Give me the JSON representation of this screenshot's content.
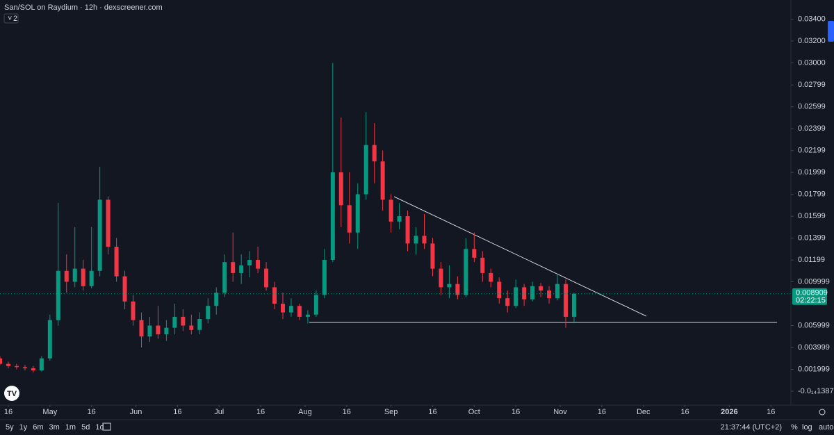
{
  "chart_data": {
    "type": "candlestick",
    "title": "San/SOL on Raydium · 12h · dexscreener.com",
    "indicator_count": "2",
    "x": [
      -3,
      0,
      3,
      6,
      9,
      12,
      15,
      18,
      21,
      24,
      27,
      30,
      33,
      36,
      39,
      42,
      45,
      48,
      51,
      54,
      57,
      60,
      63,
      66,
      69,
      72,
      75,
      78,
      81,
      84,
      87,
      90,
      93,
      96,
      99,
      102,
      105,
      108,
      111,
      114,
      117,
      120,
      123,
      126,
      129,
      132,
      135,
      138,
      141,
      144,
      147,
      150,
      153,
      156,
      159,
      162,
      165,
      168,
      171,
      174,
      177,
      180,
      183,
      186,
      189,
      192,
      195,
      198,
      201,
      204
    ],
    "open": [
      0.003,
      0.0025,
      0.0023,
      0.0022,
      0.0021,
      0.0019,
      0.003,
      0.0065,
      0.011,
      0.01,
      0.0112,
      0.0096,
      0.011,
      0.0175,
      0.0132,
      0.0105,
      0.0082,
      0.0065,
      0.005,
      0.006,
      0.0052,
      0.0058,
      0.0068,
      0.006,
      0.0056,
      0.0066,
      0.0078,
      0.009,
      0.0118,
      0.0108,
      0.0115,
      0.012,
      0.0112,
      0.0095,
      0.008,
      0.0072,
      0.0078,
      0.0068,
      0.007,
      0.0088,
      0.012,
      0.02,
      0.017,
      0.0145,
      0.018,
      0.0225,
      0.021,
      0.0175,
      0.0155,
      0.016,
      0.0135,
      0.0142,
      0.0135,
      0.0112,
      0.0095,
      0.0098,
      0.0088,
      0.013,
      0.0122,
      0.0108,
      0.01,
      0.0085,
      0.0078,
      0.0095,
      0.0084,
      0.0096,
      0.0092,
      0.0085,
      0.0098,
      0.0068
    ],
    "high": [
      0.0032,
      0.0027,
      0.0025,
      0.0024,
      0.0023,
      0.0032,
      0.007,
      0.0172,
      0.0125,
      0.015,
      0.012,
      0.015,
      0.0205,
      0.0178,
      0.014,
      0.011,
      0.0088,
      0.0072,
      0.0068,
      0.0078,
      0.0065,
      0.008,
      0.0075,
      0.007,
      0.0072,
      0.0085,
      0.0095,
      0.0125,
      0.0145,
      0.0125,
      0.0128,
      0.0132,
      0.0118,
      0.01,
      0.009,
      0.0085,
      0.008,
      0.0074,
      0.0092,
      0.013,
      0.03,
      0.025,
      0.02,
      0.019,
      0.0255,
      0.0245,
      0.022,
      0.018,
      0.0172,
      0.0165,
      0.015,
      0.0162,
      0.014,
      0.0118,
      0.0115,
      0.0105,
      0.014,
      0.0145,
      0.0128,
      0.0112,
      0.0104,
      0.0092,
      0.0102,
      0.0098,
      0.01,
      0.0099,
      0.0096,
      0.0106,
      0.0102,
      0.009
    ],
    "low": [
      0.0024,
      0.0021,
      0.002,
      0.0019,
      0.0017,
      0.0018,
      0.0028,
      0.006,
      0.009,
      0.0095,
      0.0092,
      0.0094,
      0.0105,
      0.0125,
      0.01,
      0.0075,
      0.006,
      0.004,
      0.0045,
      0.0048,
      0.0046,
      0.0052,
      0.0055,
      0.0052,
      0.0052,
      0.0062,
      0.007,
      0.0086,
      0.01,
      0.0098,
      0.0104,
      0.0108,
      0.0092,
      0.0075,
      0.0066,
      0.0068,
      0.0065,
      0.0062,
      0.0068,
      0.0085,
      0.0118,
      0.015,
      0.0135,
      0.013,
      0.0175,
      0.019,
      0.0165,
      0.0145,
      0.0148,
      0.0128,
      0.0125,
      0.013,
      0.0105,
      0.0088,
      0.0085,
      0.0084,
      0.0086,
      0.0118,
      0.01,
      0.0095,
      0.008,
      0.0072,
      0.0076,
      0.0078,
      0.0082,
      0.0086,
      0.008,
      0.0083,
      0.0058,
      0.0062
    ],
    "close": [
      0.0025,
      0.0023,
      0.0022,
      0.0021,
      0.0019,
      0.003,
      0.0065,
      0.011,
      0.01,
      0.0112,
      0.0096,
      0.011,
      0.0175,
      0.0132,
      0.0105,
      0.0082,
      0.0065,
      0.005,
      0.006,
      0.0052,
      0.0058,
      0.0068,
      0.006,
      0.0056,
      0.0066,
      0.0078,
      0.009,
      0.0118,
      0.0108,
      0.0115,
      0.012,
      0.0112,
      0.0095,
      0.008,
      0.0072,
      0.0078,
      0.0068,
      0.007,
      0.0088,
      0.012,
      0.02,
      0.017,
      0.0145,
      0.018,
      0.0225,
      0.021,
      0.0175,
      0.0155,
      0.016,
      0.0135,
      0.0142,
      0.0135,
      0.0112,
      0.0095,
      0.0098,
      0.0088,
      0.013,
      0.0122,
      0.0108,
      0.01,
      0.0085,
      0.0078,
      0.0095,
      0.0084,
      0.0096,
      0.0092,
      0.0085,
      0.0098,
      0.0068,
      0.0089
    ],
    "up_color": "#089981",
    "down_color": "#f23645",
    "xlim": [
      -3,
      282.2
    ],
    "xticks": [
      {
        "value": 0,
        "label": "16"
      },
      {
        "value": 15,
        "label": "May"
      },
      {
        "value": 30,
        "label": "16"
      },
      {
        "value": 46,
        "label": "Jun"
      },
      {
        "value": 61,
        "label": "16"
      },
      {
        "value": 76,
        "label": "Jul"
      },
      {
        "value": 91,
        "label": "16"
      },
      {
        "value": 107,
        "label": "Aug"
      },
      {
        "value": 122,
        "label": "16"
      },
      {
        "value": 138,
        "label": "Sep"
      },
      {
        "value": 153,
        "label": "16"
      },
      {
        "value": 168,
        "label": "Oct"
      },
      {
        "value": 183,
        "label": "16"
      },
      {
        "value": 199,
        "label": "Nov"
      },
      {
        "value": 214,
        "label": "16"
      },
      {
        "value": 229,
        "label": "Dec"
      },
      {
        "value": 244,
        "label": "16"
      },
      {
        "value": 260,
        "label": "2026"
      },
      {
        "value": 275,
        "label": "16"
      }
    ],
    "ylim": [
      -0.00127,
      0.03575
    ],
    "yticks": [
      {
        "value": 0.034,
        "label": "0.03400"
      },
      {
        "value": 0.032,
        "label": "0.03200"
      },
      {
        "value": 0.03,
        "label": "0.03000"
      },
      0.02799,
      0.02599,
      0.02399,
      0.02199,
      0.01999,
      0.01799,
      0.01599,
      0.01399,
      0.01199,
      0.009999,
      0.005999,
      0.003999,
      0.001999,
      {
        "value": -1.387e-15,
        "label": "-0.0₁₄1387"
      }
    ],
    "last_price": 0.008909,
    "countdown": "02:22:15",
    "ranges": [
      "5y",
      "1y",
      "6m",
      "3m",
      "1m",
      "5d",
      "1d"
    ],
    "clock": "21:37:44 (UTC+2)",
    "scale_options": [
      "%",
      "log",
      "auto"
    ]
  }
}
